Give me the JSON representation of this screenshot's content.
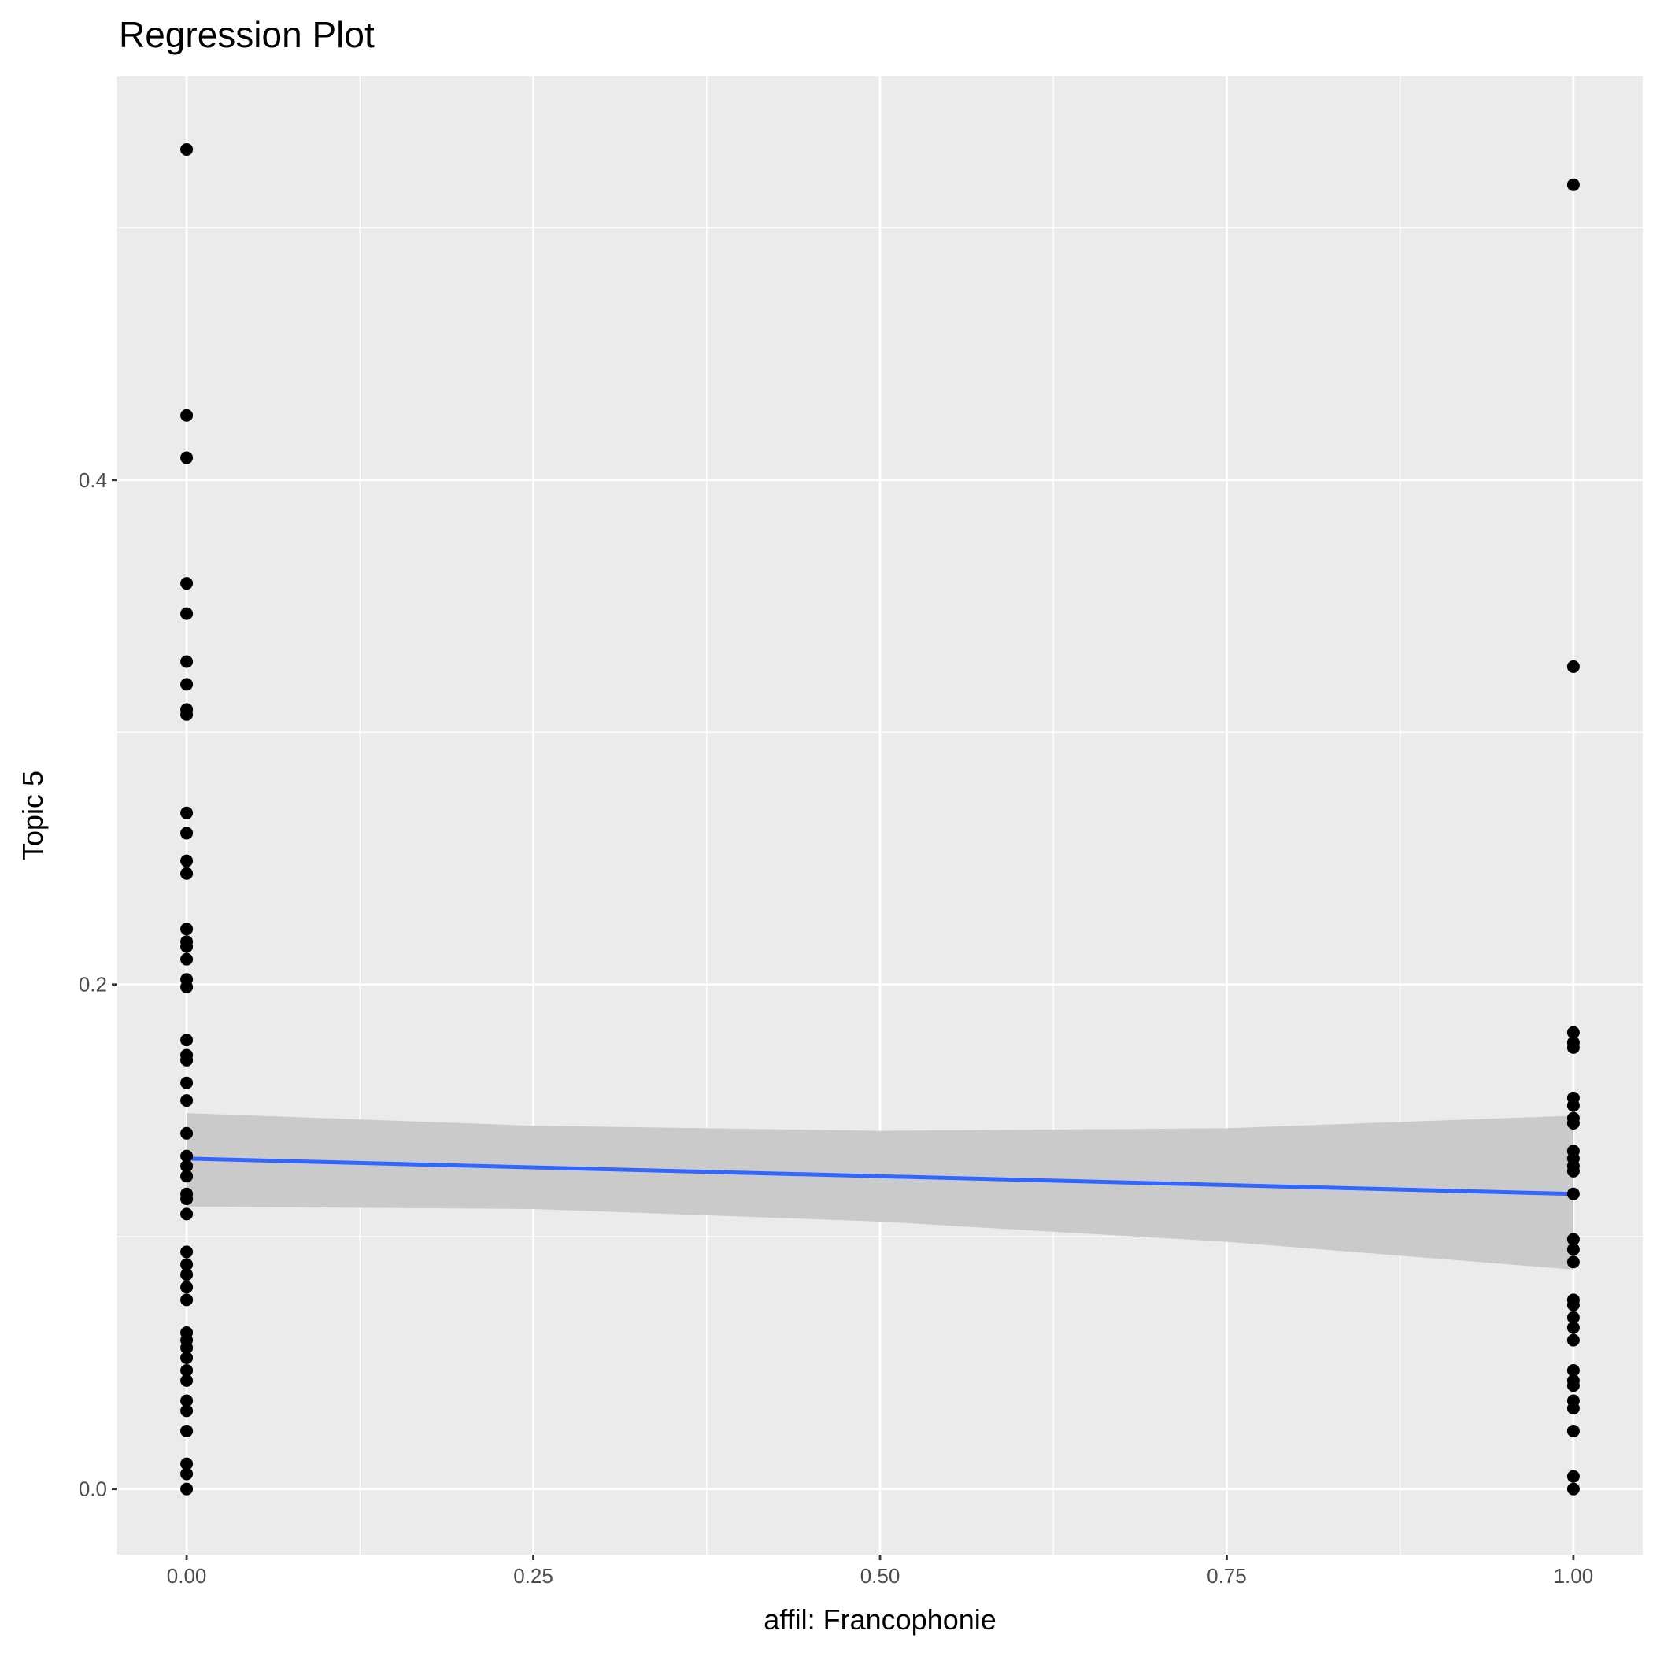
{
  "chart_data": {
    "type": "scatter",
    "title": "Regression Plot",
    "xlabel": "affil: Francophonie",
    "ylabel": "Topic 5",
    "xlim": [
      -0.05,
      1.05
    ],
    "ylim": [
      -0.026,
      0.56
    ],
    "x_ticks": [
      0,
      0.25,
      0.5,
      0.75,
      1
    ],
    "x_tick_labels": [
      "0.00",
      "0.25",
      "0.50",
      "0.75",
      "1.00"
    ],
    "y_ticks": [
      0,
      0.2,
      0.4
    ],
    "y_tick_labels": [
      "0.0",
      "0.2",
      "0.4"
    ],
    "grid": true,
    "colors": {
      "panel": "#EBEBEB",
      "grid": "#FFFFFF",
      "point": "#000000",
      "line": "#3366FF",
      "band": "#C8C8C8"
    },
    "series": [
      {
        "x": 0,
        "y": [
          0.531,
          0.4256,
          0.4088,
          0.359,
          0.347,
          0.328,
          0.319,
          0.309,
          0.307,
          0.268,
          0.26,
          0.249,
          0.244,
          0.222,
          0.217,
          0.215,
          0.21,
          0.202,
          0.199,
          0.178,
          0.172,
          0.17,
          0.161,
          0.154,
          0.141,
          0.132,
          0.128,
          0.124,
          0.117,
          0.115,
          0.109,
          0.094,
          0.089,
          0.085,
          0.08,
          0.075,
          0.062,
          0.059,
          0.056,
          0.052,
          0.047,
          0.043,
          0.035,
          0.031,
          0.023,
          0.01,
          0.006,
          0.0
        ]
      },
      {
        "x": 1,
        "y": [
          0.517,
          0.326,
          0.181,
          0.177,
          0.175,
          0.155,
          0.152,
          0.147,
          0.145,
          0.134,
          0.131,
          0.128,
          0.126,
          0.117,
          0.099,
          0.095,
          0.09,
          0.075,
          0.073,
          0.068,
          0.064,
          0.059,
          0.047,
          0.043,
          0.041,
          0.035,
          0.032,
          0.023,
          0.005,
          0.0
        ]
      }
    ],
    "regression": {
      "method": "lm",
      "x": [
        0,
        1
      ],
      "y": [
        0.131,
        0.117
      ],
      "band": {
        "x": [
          0,
          0.25,
          0.5,
          0.75,
          1
        ],
        "upper": [
          0.149,
          0.144,
          0.142,
          0.143,
          0.148
        ],
        "lower": [
          0.112,
          0.111,
          0.106,
          0.098,
          0.087
        ]
      }
    }
  }
}
